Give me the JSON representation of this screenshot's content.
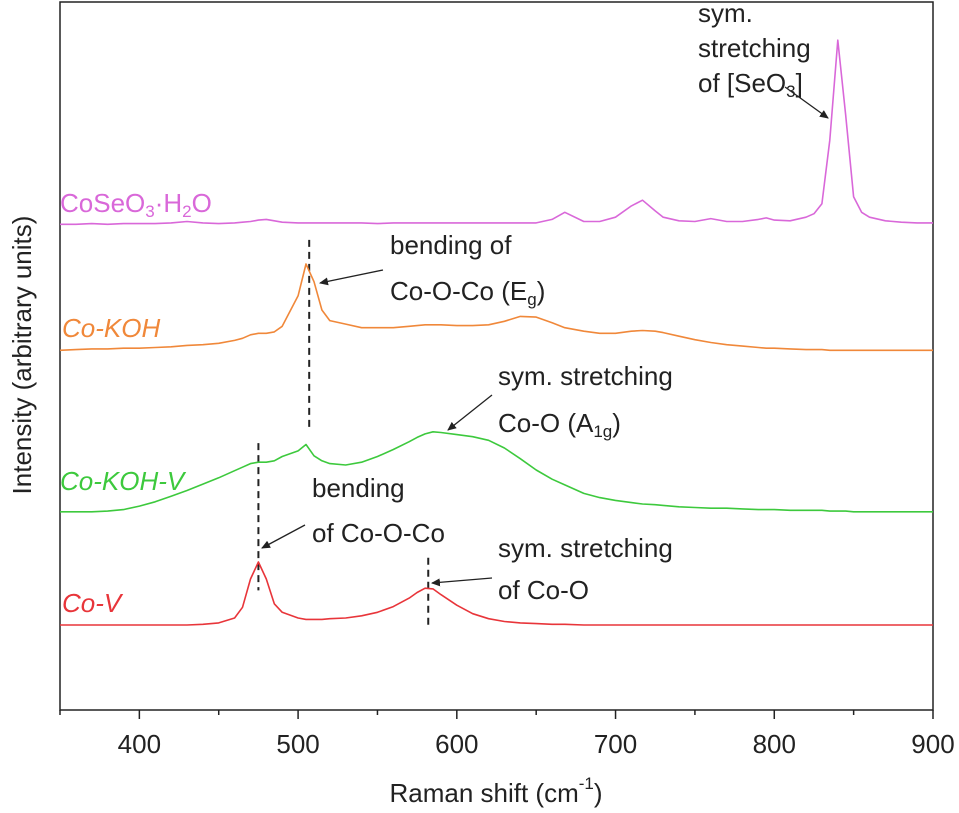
{
  "chart_data": {
    "type": "line",
    "xlabel": [
      "Raman shift (cm",
      "-1",
      ")"
    ],
    "ylabel": "Intensity (arbitrary units)",
    "x": [
      350,
      360,
      370,
      380,
      390,
      400,
      410,
      420,
      430,
      440,
      450,
      460,
      465,
      470,
      475,
      480,
      485,
      490,
      500,
      505,
      510,
      515,
      520,
      530,
      540,
      550,
      560,
      570,
      575,
      580,
      585,
      590,
      600,
      610,
      620,
      630,
      640,
      650,
      660,
      668,
      680,
      690,
      700,
      710,
      717,
      725,
      730,
      740,
      750,
      760,
      770,
      780,
      790,
      795,
      800,
      810,
      820,
      825,
      830,
      835,
      840,
      845,
      850,
      855,
      860,
      870,
      880,
      890,
      900
    ],
    "xlim": [
      350,
      900
    ],
    "xticks": [
      400,
      500,
      600,
      700,
      800,
      900
    ],
    "xminorticks": [
      350,
      450,
      550,
      650,
      750,
      850
    ],
    "ylim": [
      0,
      100
    ],
    "series": [
      {
        "name": [
          "CoSeO",
          "3",
          "·H",
          "2",
          "O"
        ],
        "color": "#d968d9",
        "values": [
          68.6,
          68.6,
          68.7,
          68.6,
          68.7,
          68.7,
          68.7,
          68.8,
          69.0,
          68.8,
          68.7,
          68.8,
          68.9,
          69.0,
          69.2,
          69.3,
          69.1,
          68.9,
          68.8,
          68.8,
          68.8,
          68.8,
          68.8,
          68.8,
          68.8,
          68.7,
          68.8,
          68.8,
          68.8,
          68.8,
          68.8,
          68.8,
          68.8,
          68.8,
          68.8,
          68.8,
          68.8,
          68.8,
          69.3,
          70.3,
          69.0,
          69.0,
          69.6,
          71.2,
          72.0,
          70.5,
          69.6,
          69.1,
          69.0,
          69.4,
          69.0,
          69.0,
          69.3,
          69.5,
          69.2,
          69.1,
          69.6,
          70.1,
          71.5,
          80.5,
          94.6,
          84.0,
          72.5,
          70.3,
          69.6,
          69.1,
          68.9,
          68.8,
          68.8
        ]
      },
      {
        "name": [
          "Co-KOH"
        ],
        "color": "#f0883a",
        "values": [
          50.8,
          50.9,
          51.0,
          51.0,
          51.1,
          51.1,
          51.2,
          51.3,
          51.5,
          51.6,
          51.8,
          52.2,
          52.5,
          53.0,
          53.2,
          53.2,
          53.4,
          54.2,
          58.5,
          63.0,
          60.5,
          56.5,
          55.0,
          54.5,
          54.0,
          54.0,
          54.0,
          54.2,
          54.3,
          54.4,
          54.4,
          54.4,
          54.3,
          54.3,
          54.4,
          54.9,
          55.6,
          55.5,
          54.7,
          54.0,
          53.5,
          53.2,
          53.2,
          53.5,
          53.6,
          53.5,
          53.3,
          52.8,
          52.3,
          51.9,
          51.6,
          51.4,
          51.2,
          51.1,
          51.1,
          51.0,
          50.9,
          50.9,
          50.9,
          50.8,
          50.8,
          50.8,
          50.8,
          50.8,
          50.8,
          50.8,
          50.8,
          50.8,
          50.8
        ]
      },
      {
        "name": [
          "Co-KOH-V"
        ],
        "color": "#3dc93d",
        "values": [
          28.0,
          28.0,
          28.0,
          28.1,
          28.3,
          28.8,
          29.4,
          30.2,
          31.0,
          31.9,
          32.8,
          33.8,
          34.3,
          34.8,
          35.0,
          35.0,
          35.2,
          35.8,
          36.6,
          37.5,
          35.9,
          35.2,
          34.8,
          34.6,
          35.0,
          35.8,
          36.8,
          37.9,
          38.5,
          39.0,
          39.3,
          39.2,
          38.9,
          38.6,
          38.1,
          37.0,
          35.5,
          33.9,
          32.6,
          31.8,
          30.6,
          30.0,
          29.6,
          29.3,
          29.1,
          29.0,
          28.9,
          28.7,
          28.6,
          28.5,
          28.5,
          28.4,
          28.3,
          28.3,
          28.3,
          28.2,
          28.2,
          28.2,
          28.2,
          28.1,
          28.1,
          28.1,
          28.0,
          28.0,
          28.0,
          28.0,
          28.0,
          28.0,
          28.0
        ]
      },
      {
        "name": [
          "Co-V"
        ],
        "color": "#e8353a",
        "values": [
          12.0,
          12.0,
          12.0,
          12.0,
          12.0,
          12.0,
          12.0,
          12.0,
          12.0,
          12.1,
          12.3,
          13.0,
          14.5,
          18.5,
          20.9,
          18.5,
          15.0,
          13.8,
          13.0,
          12.8,
          12.8,
          12.8,
          12.9,
          13.0,
          13.3,
          13.8,
          14.6,
          15.8,
          16.6,
          17.2,
          17.1,
          16.3,
          14.8,
          13.6,
          12.9,
          12.5,
          12.3,
          12.2,
          12.1,
          12.1,
          12.0,
          12.0,
          12.0,
          12.0,
          12.0,
          12.0,
          12.0,
          12.0,
          12.0,
          12.0,
          12.0,
          12.0,
          12.0,
          12.0,
          12.0,
          12.0,
          12.0,
          12.0,
          12.0,
          12.0,
          12.0,
          12.0,
          12.0,
          12.0,
          12.0,
          12.0,
          12.0,
          12.0,
          12.0
        ]
      }
    ],
    "peak_markers": [
      {
        "x": 507,
        "y": [
          66.4,
          39.5
        ]
      },
      {
        "x": 475,
        "y": [
          37.7,
          16.9
        ]
      },
      {
        "x": 582,
        "y": [
          21.5,
          12.0
        ]
      }
    ],
    "annotations": [
      {
        "lines": [
          [
            "sym."
          ],
          [
            "stretching"
          ],
          [
            "of [SeO",
            "3",
            "]"
          ]
        ]
      },
      {
        "lines": [
          [
            "bending of"
          ],
          [
            "Co-O-Co (E",
            "g",
            ")"
          ]
        ]
      },
      {
        "lines": [
          [
            "sym. stretching"
          ],
          [
            "Co-O (A",
            "1g",
            ")"
          ]
        ]
      },
      {
        "lines": [
          [
            "bending"
          ],
          [
            "of Co-O-Co"
          ]
        ]
      },
      {
        "lines": [
          [
            "sym. stretching"
          ],
          [
            "of Co-O"
          ]
        ]
      }
    ]
  }
}
